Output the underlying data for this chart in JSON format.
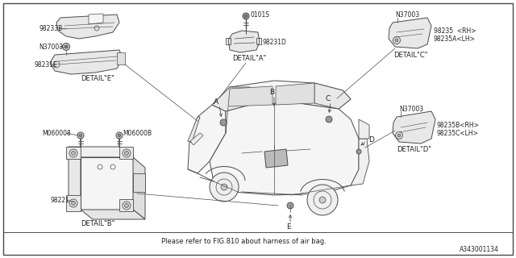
{
  "bg_color": "#ffffff",
  "line_color": "#4a4a4a",
  "diagram_id": "A343001134",
  "bottom_note": "Please refer to FIG.810 about harness of air bag.",
  "labels": {
    "detail_a": "DETAIL\"A\"",
    "detail_b": "DETAIL\"B\"",
    "detail_c": "DETAIL\"C\"",
    "detail_d": "DETAIL\"D\"",
    "detail_e": "DETAIL\"E\"",
    "part_0101s": "0101S",
    "part_98231d": "98231D",
    "part_98233b": "98233B",
    "part_n37003_e": "N37003",
    "part_98231e": "98231E",
    "part_m060008": "M060008",
    "part_m06000b": "M06000B",
    "part_98221": "98221",
    "part_n37003_c": "N37003",
    "part_98235rh": "98235  <RH>",
    "part_98235alh": "98235A<LH>",
    "part_n37003_d": "N37003",
    "part_98235brh": "98235B<RH>",
    "part_98235clh": "98235C<LH>",
    "point_a": "A",
    "point_b": "B",
    "point_c": "C",
    "point_d": "D",
    "point_e": "E"
  },
  "font_size_small": 5.5,
  "font_size_detail": 6.0,
  "font_size_note": 6.0,
  "font_size_id": 5.5
}
